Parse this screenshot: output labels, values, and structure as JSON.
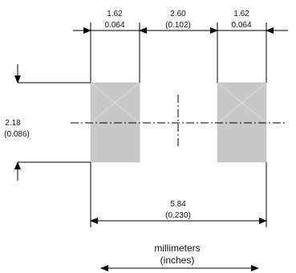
{
  "dimensions": {
    "pad_width": {
      "mm": "1.62",
      "inch": "0.064"
    },
    "gap": {
      "mm": "2.60",
      "inch": "(0.102)"
    },
    "pad_width_right": {
      "mm": "1.62",
      "inch": "0.064"
    },
    "pad_height": {
      "mm": "2.18",
      "inch": "(0.086)"
    },
    "overall_length": {
      "mm": "5.84",
      "inch": "(0.230)"
    }
  },
  "units": {
    "primary": "millimeters",
    "secondary": "(inches)"
  },
  "colors": {
    "pad_fill": "#c8c8c8",
    "line": "#000000"
  }
}
